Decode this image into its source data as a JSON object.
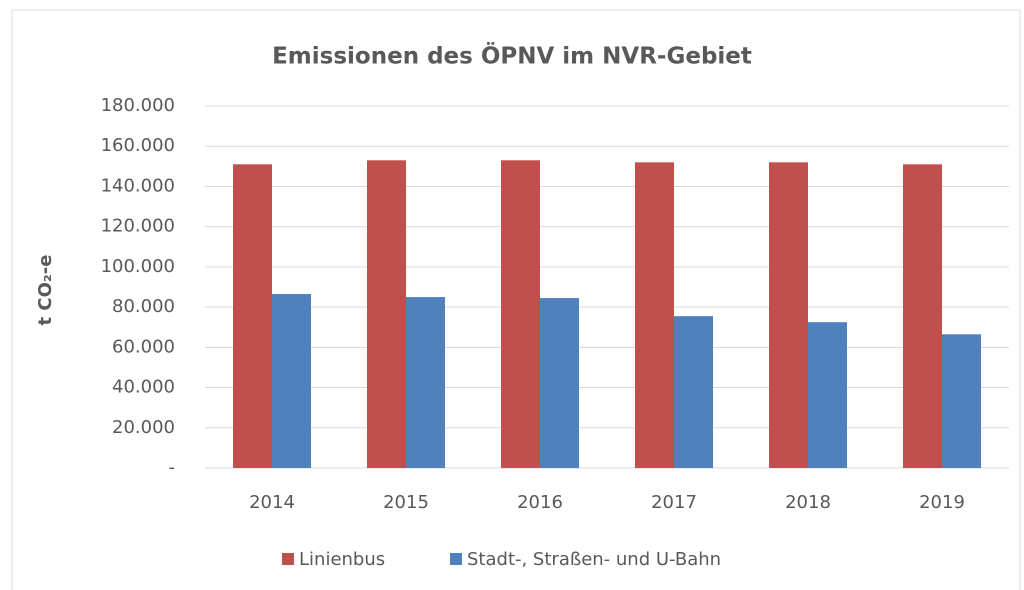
{
  "chart_data": {
    "type": "bar",
    "title": "Emissionen des ÖPNV im NVR-Gebiet",
    "y_label": "t CO₂-e",
    "categories": [
      "2014",
      "2015",
      "2016",
      "2017",
      "2018",
      "2019"
    ],
    "series": [
      {
        "name": "Linienbus",
        "color": "#c0504d",
        "values": [
          151000,
          153000,
          153000,
          152000,
          152000,
          151000
        ]
      },
      {
        "name": "Stadt-, Straßen- und U-Bahn",
        "color": "#4f81bd",
        "values": [
          86500,
          85000,
          84500,
          75500,
          72500,
          66500
        ]
      }
    ],
    "ylim": [
      0,
      180000
    ],
    "yticks": [
      {
        "value": 0,
        "label": "-"
      },
      {
        "value": 20000,
        "label": "20.000"
      },
      {
        "value": 40000,
        "label": "40.000"
      },
      {
        "value": 60000,
        "label": "60.000"
      },
      {
        "value": 80000,
        "label": "80.000"
      },
      {
        "value": 100000,
        "label": "100.000"
      },
      {
        "value": 120000,
        "label": "120.000"
      },
      {
        "value": 140000,
        "label": "140.000"
      },
      {
        "value": 160000,
        "label": "160.000"
      },
      {
        "value": 180000,
        "label": "180.000"
      }
    ],
    "grid": true,
    "legend": "bottom"
  }
}
